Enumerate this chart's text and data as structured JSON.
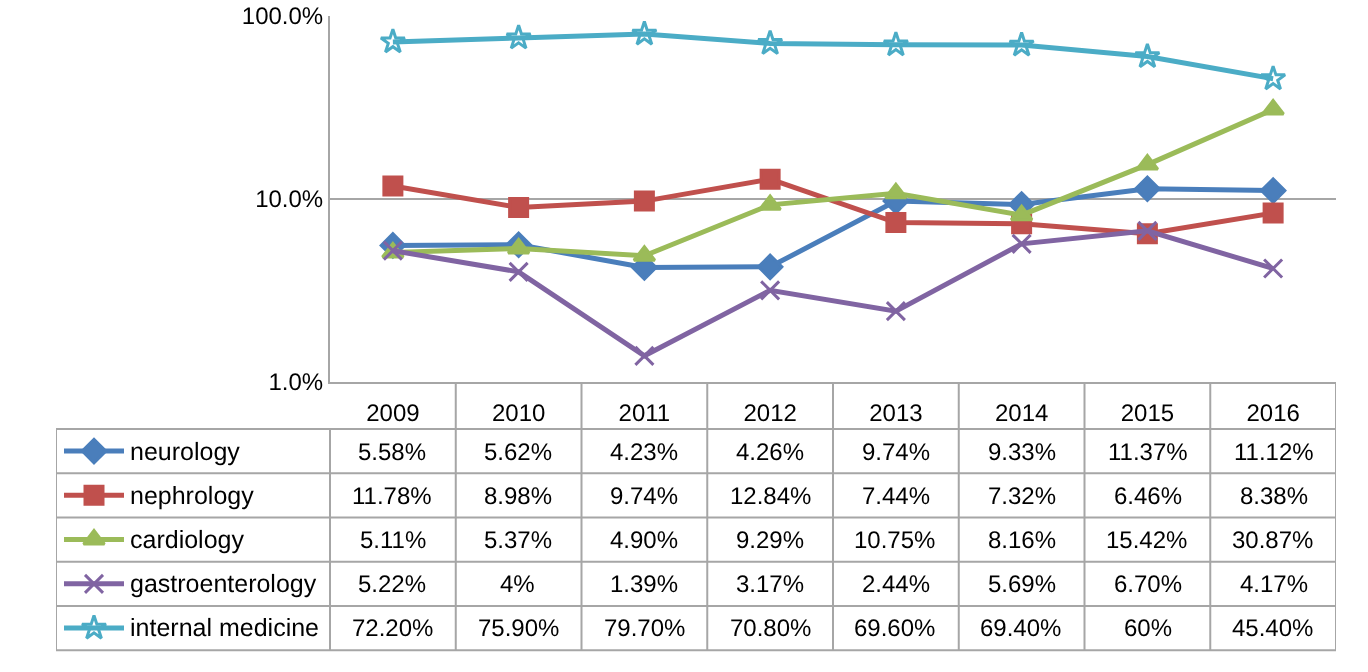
{
  "chart_data": {
    "type": "line",
    "categories": [
      "2009",
      "2010",
      "2011",
      "2012",
      "2013",
      "2014",
      "2015",
      "2016"
    ],
    "log": "y",
    "ylim": [
      1,
      100
    ],
    "yticks": [
      {
        "value": 1,
        "label": "1.0%"
      },
      {
        "value": 10,
        "label": "10.0%"
      },
      {
        "value": 100,
        "label": "100.0%"
      }
    ],
    "grid": "y",
    "legend": "bottom",
    "series": [
      {
        "name": "neurology",
        "color": "#4a7ebb",
        "marker": "diamond",
        "values": [
          5.58,
          5.62,
          4.23,
          4.26,
          9.74,
          9.33,
          11.37,
          11.12
        ],
        "value_labels": [
          "5.58%",
          "5.62%",
          "4.23%",
          "4.26%",
          "9.74%",
          "9.33%",
          "11.37%",
          "11.12%"
        ]
      },
      {
        "name": "nephrology",
        "color": "#c0504d",
        "marker": "square",
        "values": [
          11.78,
          8.98,
          9.74,
          12.84,
          7.44,
          7.32,
          6.46,
          8.38
        ],
        "value_labels": [
          "11.78%",
          "8.98%",
          "9.74%",
          "12.84%",
          "7.44%",
          "7.32%",
          "6.46%",
          "8.38%"
        ]
      },
      {
        "name": "cardiology",
        "color": "#9bbb59",
        "marker": "triangle",
        "values": [
          5.11,
          5.37,
          4.9,
          9.29,
          10.75,
          8.16,
          15.42,
          30.87
        ],
        "value_labels": [
          "5.11%",
          "5.37%",
          "4.90%",
          "9.29%",
          "10.75%",
          "8.16%",
          "15.42%",
          "30.87%"
        ]
      },
      {
        "name": "gastroenterology",
        "color": "#8064a2",
        "marker": "cross",
        "values": [
          5.22,
          4,
          1.39,
          3.17,
          2.44,
          5.69,
          6.7,
          4.17
        ],
        "value_labels": [
          "5.22%",
          "4%",
          "1.39%",
          "3.17%",
          "2.44%",
          "5.69%",
          "6.70%",
          "4.17%"
        ]
      },
      {
        "name": "internal medicine",
        "color": "#4bacc6",
        "marker": "star",
        "values": [
          72.2,
          75.9,
          79.7,
          70.8,
          69.6,
          69.4,
          60,
          45.4
        ],
        "value_labels": [
          "72.20%",
          "75.90%",
          "79.70%",
          "70.80%",
          "69.60%",
          "69.40%",
          "60%",
          "45.40%"
        ]
      }
    ]
  }
}
